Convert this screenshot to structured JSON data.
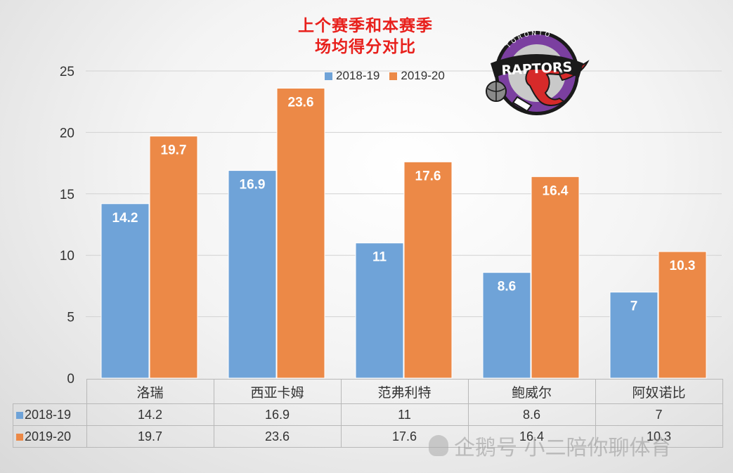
{
  "title_lines": [
    "上个赛季和本赛季",
    "场均得分对比"
  ],
  "logo_text": "RAPTORS",
  "logo_ring_text": "TORONTO",
  "watermark": "企鹅号 小二陪你聊体育",
  "colors": {
    "series_a": "#6fa3d8",
    "series_b": "#ec8947",
    "title": "#e8201c"
  },
  "chart_data": {
    "type": "bar",
    "categories": [
      "洛瑞",
      "西亚卡姆",
      "范弗利特",
      "鲍威尔",
      "阿奴诺比"
    ],
    "series": [
      {
        "name": "2018-19",
        "values": [
          14.2,
          16.9,
          11,
          8.6,
          7
        ],
        "labels": [
          "14.2",
          "16.9",
          "11",
          "8.6",
          "7"
        ]
      },
      {
        "name": "2019-20",
        "values": [
          19.7,
          23.6,
          17.6,
          16.4,
          10.3
        ],
        "labels": [
          "19.7",
          "23.6",
          "17.6",
          "16.4",
          "10.3"
        ]
      }
    ],
    "ylim": [
      0,
      25
    ],
    "yticks": [
      "0",
      "5",
      "10",
      "15",
      "20",
      "25"
    ],
    "grid": true,
    "legend": "top-center",
    "data_table": true
  }
}
